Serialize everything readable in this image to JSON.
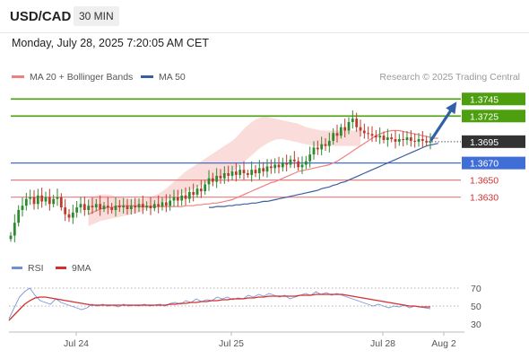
{
  "header": {
    "symbol": "USD/CAD",
    "timeframe": "30 MIN",
    "datetime": "Monday, July 28, 2025 7:20:05 AM CET"
  },
  "legend": {
    "ma20_label": "MA 20 + Bollinger Bands",
    "ma50_label": "MA 50",
    "credit": "Research © 2025 Trading Central"
  },
  "rsi_legend": {
    "rsi_label": "RSI",
    "ma_label": "9MA"
  },
  "colors": {
    "candle_up": "#2f8a2f",
    "candle_down": "#c0392b",
    "bollinger_fill": "#f8d0cf",
    "ma20": "#f08080",
    "ma50": "#3a5fa0",
    "resistance": "#4d9f0f",
    "pivot": "#3f6fd6",
    "support": "#ee7c7c",
    "last_price": "#333333",
    "arrow": "#2f60a8",
    "rsi_line": "#7b97d6",
    "rsi_ma": "#d62f2f"
  },
  "chart_data": [
    {
      "type": "candlestick",
      "instrument": "USD/CAD",
      "timeframe": "30 MIN",
      "x_ticks": [
        "Jul 24",
        "Jul 25",
        "Jul 28",
        "Aug 2"
      ],
      "ylim": [
        1.3575,
        1.376
      ],
      "levels": [
        {
          "value": 1.3745,
          "label": "1.3745",
          "kind": "resistance"
        },
        {
          "value": 1.3725,
          "label": "1.3725",
          "kind": "resistance"
        },
        {
          "value": 1.3695,
          "label": "1.3695",
          "kind": "last"
        },
        {
          "value": 1.367,
          "label": "1.3670",
          "kind": "pivot"
        },
        {
          "value": 1.365,
          "label": "1.3650",
          "kind": "support"
        },
        {
          "value": 1.363,
          "label": "1.3630",
          "kind": "support"
        }
      ],
      "close": [
        1.3585,
        1.36,
        1.3615,
        1.362,
        1.3628,
        1.363,
        1.3622,
        1.3632,
        1.3625,
        1.363,
        1.3622,
        1.3628,
        1.363,
        1.3618,
        1.361,
        1.3606,
        1.3612,
        1.3618,
        1.3622,
        1.3615,
        1.362,
        1.3618,
        1.3622,
        1.3616,
        1.362,
        1.3618,
        1.3615,
        1.362,
        1.3618,
        1.362,
        1.3616,
        1.362,
        1.3618,
        1.3622,
        1.3618,
        1.362,
        1.3617,
        1.3622,
        1.3619,
        1.3624,
        1.362,
        1.3626,
        1.363,
        1.3626,
        1.3632,
        1.3628,
        1.3636,
        1.3633,
        1.364,
        1.3637,
        1.3645,
        1.3652,
        1.3648,
        1.3655,
        1.3652,
        1.3658,
        1.3655,
        1.366,
        1.3656,
        1.3662,
        1.3658,
        1.3656,
        1.3662,
        1.3658,
        1.3664,
        1.366,
        1.3666,
        1.3664,
        1.3668,
        1.3665,
        1.367,
        1.3668,
        1.3674,
        1.3672,
        1.3665,
        1.3668,
        1.3672,
        1.368,
        1.3688,
        1.3686,
        1.3692,
        1.369,
        1.3696,
        1.3705,
        1.3702,
        1.3712,
        1.3708,
        1.3718,
        1.3722,
        1.3712,
        1.3708,
        1.3705,
        1.3704,
        1.3702,
        1.37,
        1.3702,
        1.3697,
        1.37,
        1.3698,
        1.3695,
        1.3698,
        1.3697,
        1.37,
        1.3696,
        1.3695,
        1.3698,
        1.3696,
        1.3694,
        1.3695
      ],
      "ma20": [
        1.361,
        1.3612,
        1.3614,
        1.3616,
        1.3617,
        1.3618,
        1.3618,
        1.3619,
        1.362,
        1.362,
        1.362,
        1.362,
        1.362,
        1.3619,
        1.3619,
        1.3619,
        1.3619,
        1.3619,
        1.3619,
        1.3619,
        1.3619,
        1.3619,
        1.3619,
        1.3619,
        1.3619,
        1.362,
        1.362,
        1.362,
        1.3621,
        1.3621,
        1.3622,
        1.3622,
        1.3623,
        1.3623,
        1.3624,
        1.3625,
        1.3626,
        1.3627,
        1.3629,
        1.3631,
        1.3633,
        1.3635,
        1.3637,
        1.3639,
        1.3641,
        1.3643,
        1.3645,
        1.3647,
        1.3648,
        1.365,
        1.3652,
        1.3654,
        1.3656,
        1.3658,
        1.366,
        1.3661,
        1.3662,
        1.3663,
        1.3664,
        1.3665,
        1.3666,
        1.3667,
        1.3668,
        1.367,
        1.3672,
        1.3675,
        1.3678,
        1.3681,
        1.3684,
        1.3687,
        1.369,
        1.3693,
        1.3696,
        1.3699,
        1.3702,
        1.3704,
        1.3706,
        1.3707,
        1.3708,
        1.3708,
        1.3708,
        1.3707,
        1.3706,
        1.3705,
        1.3704,
        1.3703,
        1.3702,
        1.3701,
        1.37,
        1.3699,
        1.3699
      ],
      "ma20_start": 20,
      "bb_upper": [
        1.3628,
        1.363,
        1.3632,
        1.3633,
        1.3633,
        1.3633,
        1.3632,
        1.3631,
        1.363,
        1.3629,
        1.3628,
        1.3628,
        1.3628,
        1.3628,
        1.3628,
        1.3629,
        1.363,
        1.3632,
        1.3634,
        1.3637,
        1.364,
        1.3644,
        1.3648,
        1.3652,
        1.3656,
        1.366,
        1.3663,
        1.3666,
        1.3669,
        1.3672,
        1.3675,
        1.3678,
        1.3681,
        1.3684,
        1.3687,
        1.369,
        1.3693,
        1.3696,
        1.37,
        1.3705,
        1.371,
        1.3714,
        1.3718,
        1.3721,
        1.3723,
        1.3724,
        1.3724,
        1.3723,
        1.3722,
        1.3721,
        1.372,
        1.3719,
        1.3718,
        1.3717,
        1.3716,
        1.3714,
        1.3712,
        1.3711,
        1.371,
        1.3709,
        1.3708,
        1.3708,
        1.3708,
        1.3708,
        1.3708,
        1.3708,
        1.3708,
        1.3708,
        1.3708,
        1.3708,
        1.3708
      ],
      "bb_lower": [
        1.3596,
        1.3598,
        1.36,
        1.3602,
        1.3603,
        1.3604,
        1.3605,
        1.3606,
        1.3607,
        1.3608,
        1.3609,
        1.361,
        1.3611,
        1.3612,
        1.3614,
        1.3616,
        1.3618,
        1.362,
        1.3622,
        1.3624,
        1.3626,
        1.3628,
        1.363,
        1.3632,
        1.3634,
        1.3636,
        1.3638,
        1.364,
        1.3642,
        1.3644,
        1.3646,
        1.3648,
        1.365,
        1.3652,
        1.3654,
        1.3656,
        1.3658,
        1.366,
        1.3663,
        1.3667,
        1.3671,
        1.3675,
        1.3679,
        1.3683,
        1.3687,
        1.369,
        1.3693,
        1.3695,
        1.3697,
        1.3698,
        1.3698,
        1.3697,
        1.3696,
        1.3695,
        1.3694,
        1.3693,
        1.3692,
        1.3691,
        1.369,
        1.369,
        1.369,
        1.369,
        1.369,
        1.369,
        1.369,
        1.369,
        1.369,
        1.369,
        1.369,
        1.369,
        1.369
      ],
      "ma50": [
        1.3618,
        1.3618,
        1.3619,
        1.3619,
        1.3619,
        1.362,
        1.362,
        1.3621,
        1.3621,
        1.3622,
        1.3622,
        1.3623,
        1.3623,
        1.3624,
        1.3625,
        1.3625,
        1.3626,
        1.3627,
        1.3628,
        1.3629,
        1.363,
        1.3631,
        1.3632,
        1.3633,
        1.3634,
        1.3635,
        1.3636,
        1.3637,
        1.3638,
        1.364,
        1.3641,
        1.3642,
        1.3644,
        1.3645,
        1.3647,
        1.3648,
        1.365,
        1.3652,
        1.3654,
        1.3656,
        1.3658,
        1.366,
        1.3662,
        1.3664,
        1.3666,
        1.3668,
        1.367,
        1.3672,
        1.3674,
        1.3676,
        1.3678,
        1.368,
        1.3682,
        1.3684,
        1.3686,
        1.3688,
        1.369,
        1.3691,
        1.3692,
        1.3693
      ],
      "ma50_start": 51,
      "projection": {
        "from": 1.3695,
        "to": 1.3745
      }
    },
    {
      "type": "line",
      "title": "RSI",
      "ylim": [
        25,
        80
      ],
      "y_ticks": [
        70,
        50,
        30
      ],
      "guides": [
        70,
        50
      ],
      "series": [
        {
          "name": "RSI",
          "values": [
            36,
            48,
            60,
            66,
            70,
            62,
            56,
            54,
            52,
            58,
            54,
            52,
            50,
            48,
            46,
            48,
            52,
            50,
            52,
            50,
            51,
            49,
            52,
            50,
            51,
            50,
            52,
            50,
            51,
            52,
            50,
            53,
            54,
            52,
            56,
            54,
            58,
            55,
            57,
            56,
            60,
            58,
            60,
            57,
            59,
            58,
            62,
            60,
            63,
            61,
            64,
            62,
            60,
            62,
            58,
            60,
            62,
            64,
            62,
            66,
            63,
            65,
            62,
            64,
            62,
            60,
            58,
            56,
            54,
            52,
            50,
            52,
            50,
            48,
            50,
            49,
            51,
            48,
            50,
            49,
            48,
            47
          ]
        },
        {
          "name": "9MA",
          "values": [
            34,
            40,
            46,
            52,
            56,
            59,
            60,
            60,
            59,
            58,
            57,
            56,
            55,
            54,
            53,
            52,
            51,
            51,
            51,
            51,
            51,
            51,
            51,
            51,
            51,
            51,
            51,
            51,
            51,
            51,
            51,
            52,
            52,
            53,
            53,
            54,
            54,
            55,
            55,
            56,
            56,
            57,
            57,
            58,
            58,
            58,
            59,
            59,
            60,
            60,
            61,
            61,
            61,
            61,
            61,
            61,
            62,
            62,
            62,
            63,
            63,
            63,
            63,
            63,
            63,
            62,
            61,
            60,
            59,
            58,
            57,
            56,
            55,
            54,
            53,
            52,
            51,
            50,
            50,
            49,
            49,
            49
          ]
        }
      ]
    }
  ]
}
